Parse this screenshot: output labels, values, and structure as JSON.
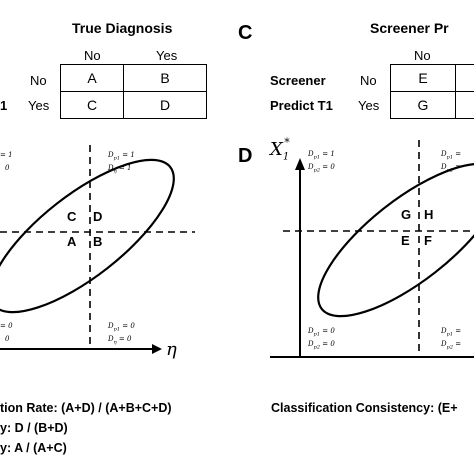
{
  "left_table": {
    "header": "True Diagnosis",
    "col_no": "No",
    "col_yes": "Yes",
    "row_no": "No",
    "row_yes": "Yes",
    "row_label_fragment": "1",
    "cells": [
      "A",
      "B",
      "C",
      "D"
    ]
  },
  "right_table": {
    "panel": "C",
    "header": "Screener Pr",
    "col_no": "No",
    "row_label_1": "Screener",
    "row_label_2": "Predict T1",
    "row_no": "No",
    "row_yes": "Yes",
    "cells": [
      "E",
      "G"
    ]
  },
  "left_plot": {
    "xlabel": "η",
    "quadrants": [
      "C",
      "D",
      "A",
      "B"
    ],
    "top_left_1": "= 1",
    "top_left_2": "0",
    "top_right_1": "D",
    "top_right_1_sub": "p1",
    "top_right_1_val": " = 1",
    "top_right_2": "D",
    "top_right_2_sub": "η",
    "top_right_2_val": " = 1",
    "bottom_left_1": "= 0",
    "bottom_left_2": "0",
    "bottom_right_1": "D",
    "bottom_right_1_sub": "p1",
    "bottom_right_1_val": " = 0",
    "bottom_right_2": "D",
    "bottom_right_2_sub": "η",
    "bottom_right_2_val": " = 0"
  },
  "right_plot": {
    "panel": "D",
    "ylabel": "X",
    "ylabel_sub": "1",
    "ylabel_sup": "*",
    "quadrants": [
      "G",
      "H",
      "E",
      "F"
    ],
    "tl_1": "D",
    "tl_1_sub": "p1",
    "tl_1_val": " = 1",
    "tl_2": "D",
    "tl_2_sub": "p2",
    "tl_2_val": " = 0",
    "tr_1": "D",
    "tr_1_sub": "p1",
    "tr_1_val": " = ",
    "tr_2": "D",
    "tr_2_sub": "p2",
    "tr_2_val": " = ",
    "bl_1": "D",
    "bl_1_sub": "p1",
    "bl_1_val": " = 0",
    "bl_2": "D",
    "bl_2_sub": "p2",
    "bl_2_val": " = 0",
    "br_1": "D",
    "br_1_sub": "p1",
    "br_1_val": " = ",
    "br_2": "D",
    "br_2_sub": "p2",
    "br_2_val": " = "
  },
  "formulas": {
    "line1": "tion Rate: (A+D) / (A+B+C+D)",
    "line2": "y: D / (B+D)",
    "line3": "y: A / (A+C)",
    "right_line1": "Classification Consistency: (E+"
  }
}
